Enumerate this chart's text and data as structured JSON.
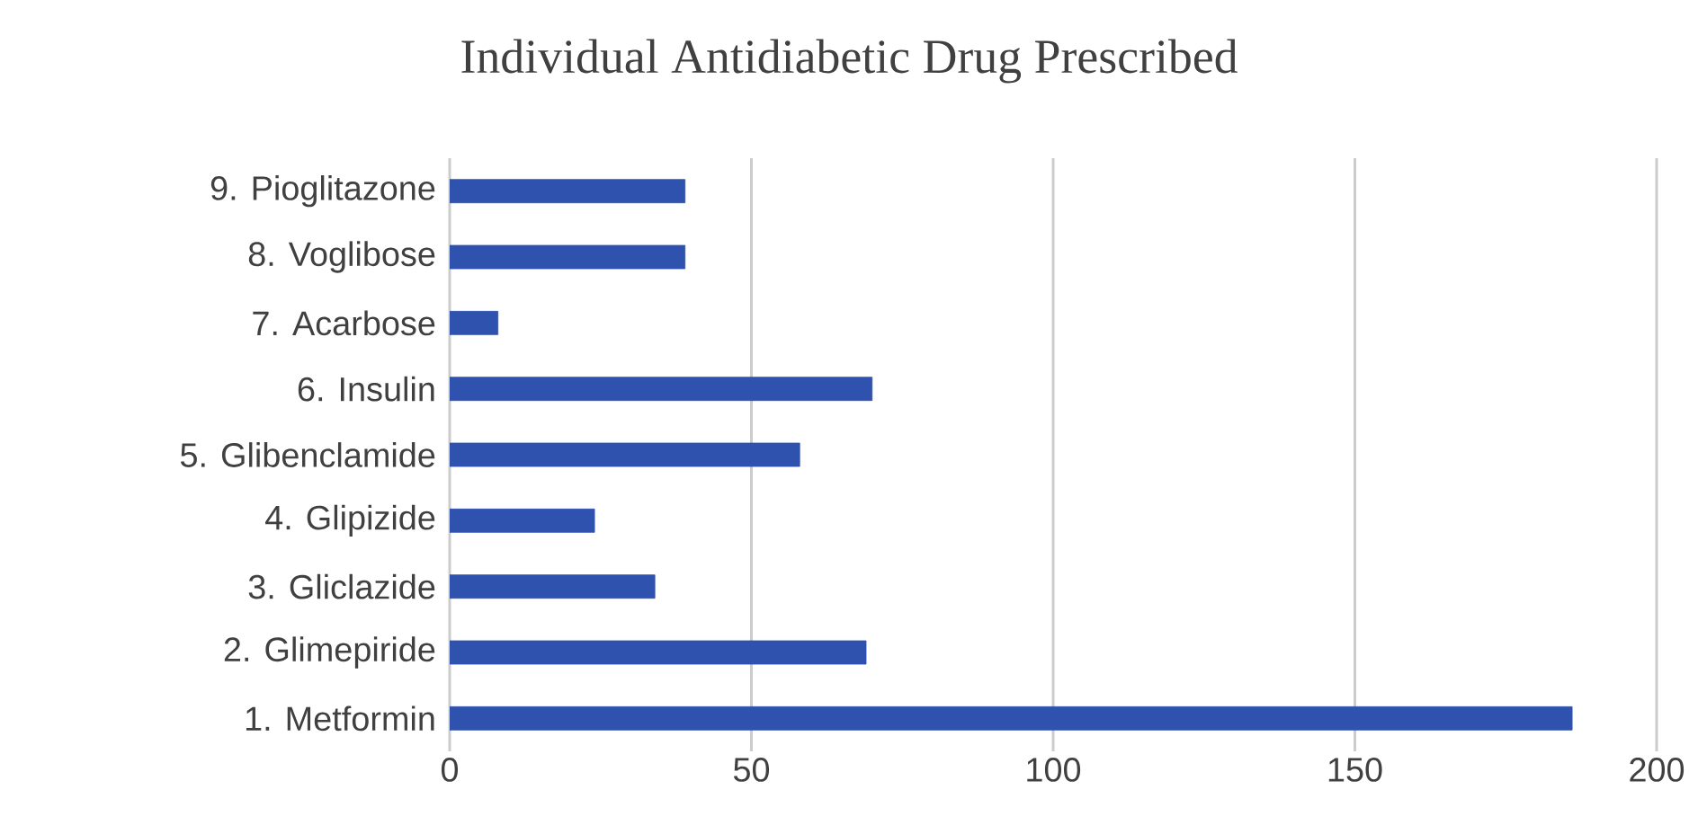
{
  "chart_data": {
    "type": "bar",
    "orientation": "horizontal",
    "title": "Individual Antidiabetic Drug Prescribed",
    "categories": [
      "9.      Pioglitazone",
      "8.      Voglibose",
      "7.      Acarbose",
      "6.      Insulin",
      "5.      Glibenclamide",
      "4.      Glipizide",
      "3.      Gliclazide",
      "2.      Glimepiride",
      "1.      Metformin"
    ],
    "values": [
      39,
      39,
      8,
      70,
      58,
      24,
      34,
      69,
      186
    ],
    "color": "#2e52ad",
    "xlim": [
      0,
      200
    ],
    "xticks": [
      0,
      50,
      100,
      150,
      200
    ],
    "grid": "x"
  }
}
